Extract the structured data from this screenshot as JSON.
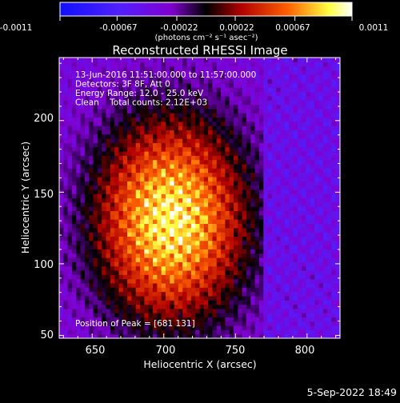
{
  "chart_data": {
    "type": "heatmap",
    "title": "Reconstructed RHESSI Image",
    "xlabel": "Heliocentric X (arcsec)",
    "ylabel": "Heliocentric Y (arcsec)",
    "xlim": [
      627,
      823
    ],
    "ylim": [
      48,
      244
    ],
    "xticks": [
      650,
      700,
      750,
      800
    ],
    "yticks": [
      50,
      100,
      150,
      200
    ],
    "colorbar": {
      "range": [
        -0.0011,
        0.0011
      ],
      "tick_labels": [
        "-0.0011",
        "-0.00067",
        "-0.00022",
        "0.00022",
        "0.00067",
        "0.0011"
      ],
      "tick_values": [
        -0.0011,
        -0.00067,
        -0.00022,
        0.00022,
        0.00067,
        0.0011
      ],
      "units_label": "(photons cm⁻² s⁻¹ asec⁻²)"
    },
    "annotations": [
      "13-Jun-2016 11:51:00.000 to 11:57:00.000",
      "Detectors: 3F 8F, Att 0",
      "Energy Range: 12.0 - 25.0 keV",
      "Clean    Total counts: 2.12E+03"
    ],
    "peak_label": "Position of Peak = [681 131]",
    "peak": {
      "x": 681,
      "y": 131
    },
    "grid": false
  },
  "footer": {
    "date": "5-Sep-2022 18:49"
  },
  "colors": {
    "background": "#000000",
    "neg_low": "#1010ff",
    "neg_mid": "#7a00d0",
    "zero": "#000000",
    "pos_low": "#b00000",
    "pos_mid": "#ff6000",
    "pos_high": "#ffff40",
    "pos_top": "#ffffff"
  }
}
